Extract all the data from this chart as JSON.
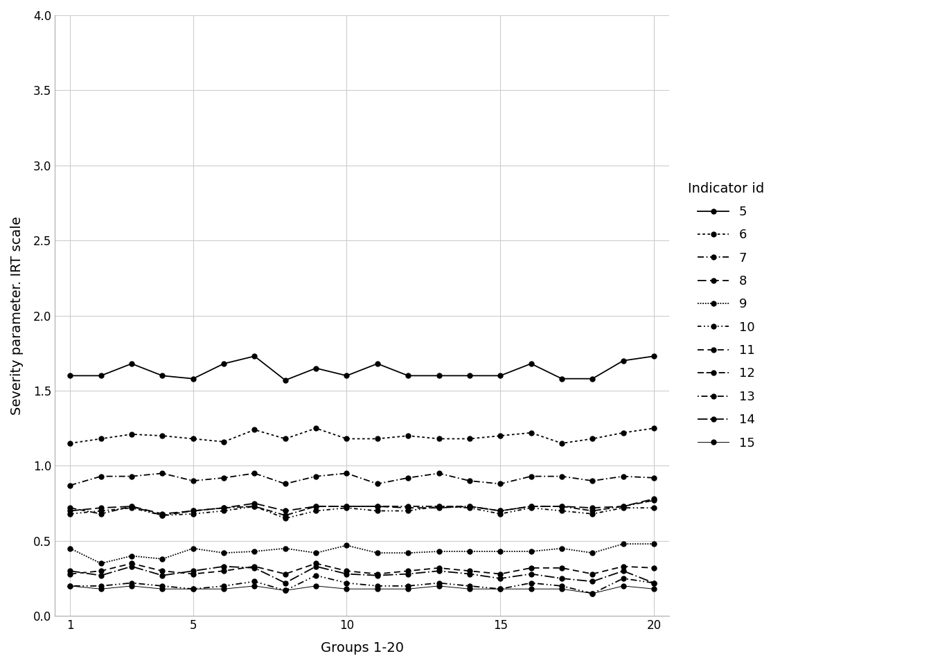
{
  "title": "",
  "xlabel": "Groups 1-20",
  "ylabel": "Severity parameter. IRT scale",
  "legend_title": "Indicator id",
  "x": [
    1,
    2,
    3,
    4,
    5,
    6,
    7,
    8,
    9,
    10,
    11,
    12,
    13,
    14,
    15,
    16,
    17,
    18,
    19,
    20
  ],
  "ylim": [
    0.0,
    4.0
  ],
  "yticks": [
    0.0,
    0.5,
    1.0,
    1.5,
    2.0,
    2.5,
    3.0,
    3.5,
    4.0
  ],
  "series": {
    "5": [
      1.6,
      1.6,
      1.68,
      1.6,
      1.58,
      1.68,
      1.73,
      1.57,
      1.65,
      1.6,
      1.68,
      1.6,
      1.6,
      1.6,
      1.6,
      1.68,
      1.58,
      1.58,
      1.7,
      1.73
    ],
    "6": [
      1.15,
      1.18,
      1.21,
      1.2,
      1.18,
      1.16,
      1.24,
      1.18,
      1.25,
      1.18,
      1.18,
      1.2,
      1.18,
      1.18,
      1.2,
      1.22,
      1.15,
      1.18,
      1.22,
      1.25
    ],
    "7": [
      0.87,
      0.93,
      0.93,
      0.95,
      0.9,
      0.92,
      0.95,
      0.88,
      0.93,
      0.95,
      0.88,
      0.92,
      0.95,
      0.9,
      0.88,
      0.93,
      0.93,
      0.9,
      0.93,
      0.92
    ],
    "8": [
      0.7,
      0.72,
      0.73,
      0.68,
      0.7,
      0.72,
      0.75,
      0.7,
      0.73,
      0.73,
      0.73,
      0.72,
      0.72,
      0.73,
      0.7,
      0.73,
      0.73,
      0.72,
      0.73,
      0.78
    ],
    "9": [
      0.45,
      0.35,
      0.4,
      0.38,
      0.45,
      0.42,
      0.43,
      0.45,
      0.42,
      0.47,
      0.42,
      0.42,
      0.43,
      0.43,
      0.43,
      0.43,
      0.45,
      0.42,
      0.48,
      0.48
    ],
    "10": [
      0.68,
      0.7,
      0.72,
      0.67,
      0.68,
      0.7,
      0.73,
      0.65,
      0.7,
      0.72,
      0.7,
      0.7,
      0.73,
      0.72,
      0.68,
      0.72,
      0.7,
      0.68,
      0.72,
      0.72
    ],
    "11": [
      0.28,
      0.3,
      0.35,
      0.3,
      0.28,
      0.3,
      0.33,
      0.28,
      0.35,
      0.3,
      0.28,
      0.3,
      0.32,
      0.3,
      0.28,
      0.32,
      0.32,
      0.28,
      0.33,
      0.32
    ],
    "12": [
      0.72,
      0.68,
      0.73,
      0.67,
      0.7,
      0.72,
      0.73,
      0.67,
      0.73,
      0.73,
      0.73,
      0.73,
      0.73,
      0.73,
      0.7,
      0.73,
      0.73,
      0.7,
      0.73,
      0.77
    ],
    "13": [
      0.2,
      0.2,
      0.22,
      0.2,
      0.18,
      0.2,
      0.23,
      0.17,
      0.27,
      0.22,
      0.2,
      0.2,
      0.22,
      0.2,
      0.18,
      0.22,
      0.2,
      0.15,
      0.25,
      0.22
    ],
    "14": [
      0.3,
      0.27,
      0.33,
      0.27,
      0.3,
      0.33,
      0.32,
      0.22,
      0.33,
      0.28,
      0.27,
      0.28,
      0.3,
      0.28,
      0.25,
      0.28,
      0.25,
      0.23,
      0.3,
      0.22
    ],
    "15": [
      0.2,
      0.18,
      0.2,
      0.18,
      0.18,
      0.18,
      0.2,
      0.17,
      0.2,
      0.18,
      0.18,
      0.18,
      0.2,
      0.18,
      0.18,
      0.18,
      0.18,
      0.15,
      0.2,
      0.18
    ]
  },
  "background_color": "#ffffff",
  "grid_color": "#cccccc",
  "line_color": "#000000",
  "marker": "o",
  "markersize": 5
}
